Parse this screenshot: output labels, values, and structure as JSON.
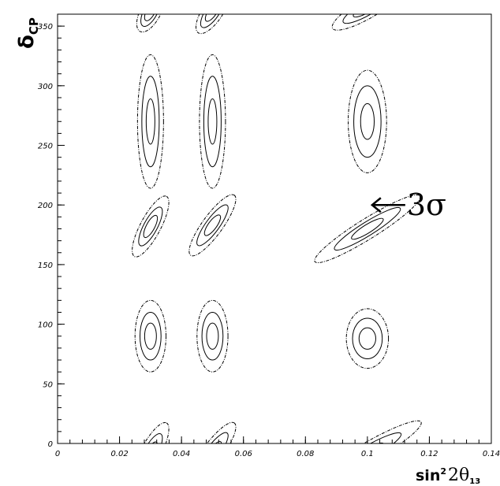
{
  "chart_data": {
    "type": "contour",
    "xlabel": {
      "prefix": "sin",
      "sup": "2",
      "main": "2θ",
      "sub": "13"
    },
    "ylabel": {
      "main": "δ",
      "sub": "CP"
    },
    "xlim": [
      0,
      0.14
    ],
    "ylim": [
      0,
      360
    ],
    "xticks": [
      0,
      0.02,
      0.04,
      0.06,
      0.08,
      0.1,
      0.12,
      0.14
    ],
    "xtick_labels": [
      "0",
      "0.02",
      "0.04",
      "0.06",
      "0.08",
      "0.1",
      "0.12",
      "0.14"
    ],
    "yticks": [
      0,
      50,
      100,
      150,
      200,
      250,
      300,
      350
    ],
    "ytick_labels": [
      "0",
      "50",
      "100",
      "150",
      "200",
      "250",
      "300",
      "350"
    ],
    "annotation": {
      "text": "3σ",
      "arrow_tip": [
        0.1,
        200
      ]
    },
    "contour_levels": [
      {
        "level": "inner",
        "style": "solid"
      },
      {
        "level": "middle",
        "style": "solid"
      },
      {
        "level": "outer",
        "style": "dashed"
      }
    ],
    "islands": [
      {
        "cx": 0.03,
        "cy": 90,
        "w": [
          0.0019,
          0.0034,
          0.005
        ],
        "h": [
          11,
          20,
          30
        ],
        "angle": 0
      },
      {
        "cx": 0.05,
        "cy": 90,
        "w": [
          0.0019,
          0.0034,
          0.005
        ],
        "h": [
          11,
          20,
          30
        ],
        "angle": 0
      },
      {
        "cx": 0.1,
        "cy": 88,
        "w": [
          0.0027,
          0.0048,
          0.0068
        ],
        "h": [
          9,
          17,
          25
        ],
        "angle": 0
      },
      {
        "cx": 0.03,
        "cy": 270,
        "w": [
          0.0014,
          0.0028,
          0.0042
        ],
        "h": [
          19,
          38,
          56
        ],
        "angle": 0
      },
      {
        "cx": 0.05,
        "cy": 270,
        "w": [
          0.0014,
          0.0028,
          0.0042
        ],
        "h": [
          19,
          38,
          56
        ],
        "angle": 0
      },
      {
        "cx": 0.1,
        "cy": 270,
        "w": [
          0.0022,
          0.0044,
          0.0062
        ],
        "h": [
          15,
          30,
          43
        ],
        "angle": 0
      },
      {
        "cx": 0.03,
        "cy": 182,
        "w": [
          0.004,
          0.007,
          0.011
        ],
        "h": [
          4,
          8,
          13
        ],
        "angle": -62
      },
      {
        "cx": 0.05,
        "cy": 183,
        "w": [
          0.004,
          0.008,
          0.012
        ],
        "h": [
          4,
          8,
          13
        ],
        "angle": -54
      },
      {
        "cx": 0.1,
        "cy": 180,
        "w": [
          0.006,
          0.0125,
          0.02
        ],
        "h": [
          4,
          8,
          13
        ],
        "angle": -32
      },
      {
        "cx": 0.03,
        "cy": 362,
        "w": [
          0.0032,
          0.0052,
          0.0072
        ],
        "h": [
          4,
          8,
          13
        ],
        "angle": -62
      },
      {
        "cx": 0.05,
        "cy": 362,
        "w": [
          0.0036,
          0.006,
          0.0082
        ],
        "h": [
          4,
          8,
          13
        ],
        "angle": -56
      },
      {
        "cx": 0.1,
        "cy": 365,
        "w": [
          0.0052,
          0.009,
          0.013
        ],
        "h": [
          4,
          8,
          13
        ],
        "angle": -30
      },
      {
        "cx": 0.03,
        "cy": -8,
        "w": [
          0.004,
          0.007,
          0.011
        ],
        "h": [
          4,
          8,
          13
        ],
        "angle": -62
      },
      {
        "cx": 0.05,
        "cy": -8,
        "w": [
          0.0045,
          0.008,
          0.012
        ],
        "h": [
          4,
          8,
          13
        ],
        "angle": -54
      },
      {
        "cx": 0.1,
        "cy": -8,
        "w": [
          0.006,
          0.0125,
          0.02
        ],
        "h": [
          4,
          8,
          13
        ],
        "angle": -30
      }
    ]
  }
}
